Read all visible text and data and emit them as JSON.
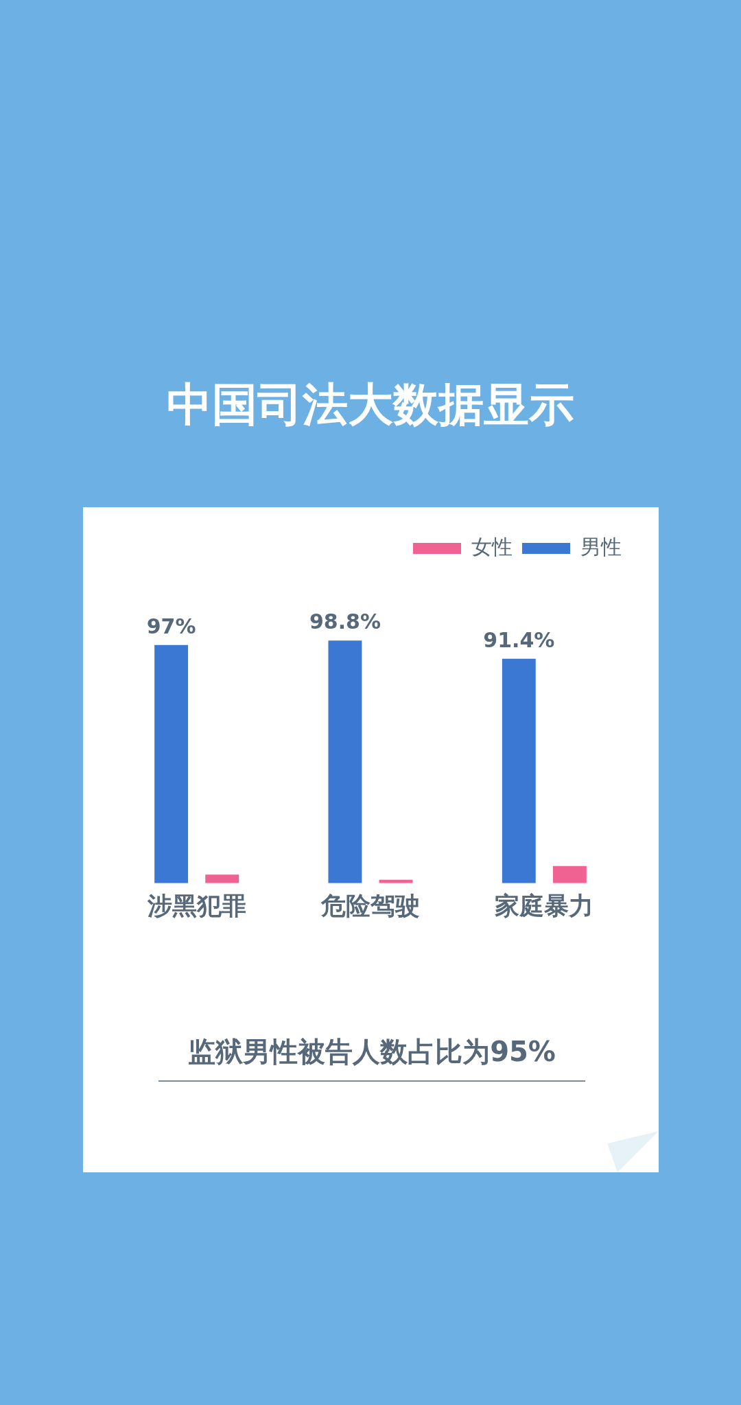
{
  "chart_data": {
    "type": "bar",
    "title": "中国司法大数据显示",
    "categories": [
      "涉黑犯罪",
      "危险驾驶",
      "家庭暴力"
    ],
    "series": [
      {
        "name": "男性",
        "color": "#3a78d4",
        "values": [
          97,
          98.8,
          91.4
        ],
        "value_labels": [
          "97%",
          "98.8%",
          "91.4%"
        ]
      },
      {
        "name": "女性",
        "color": "#f06292",
        "values": [
          3.5,
          1.4,
          7
        ]
      }
    ],
    "legend": "top right",
    "grid": false,
    "annotations": [
      "监狱男性被告人数占比为95%"
    ]
  }
}
